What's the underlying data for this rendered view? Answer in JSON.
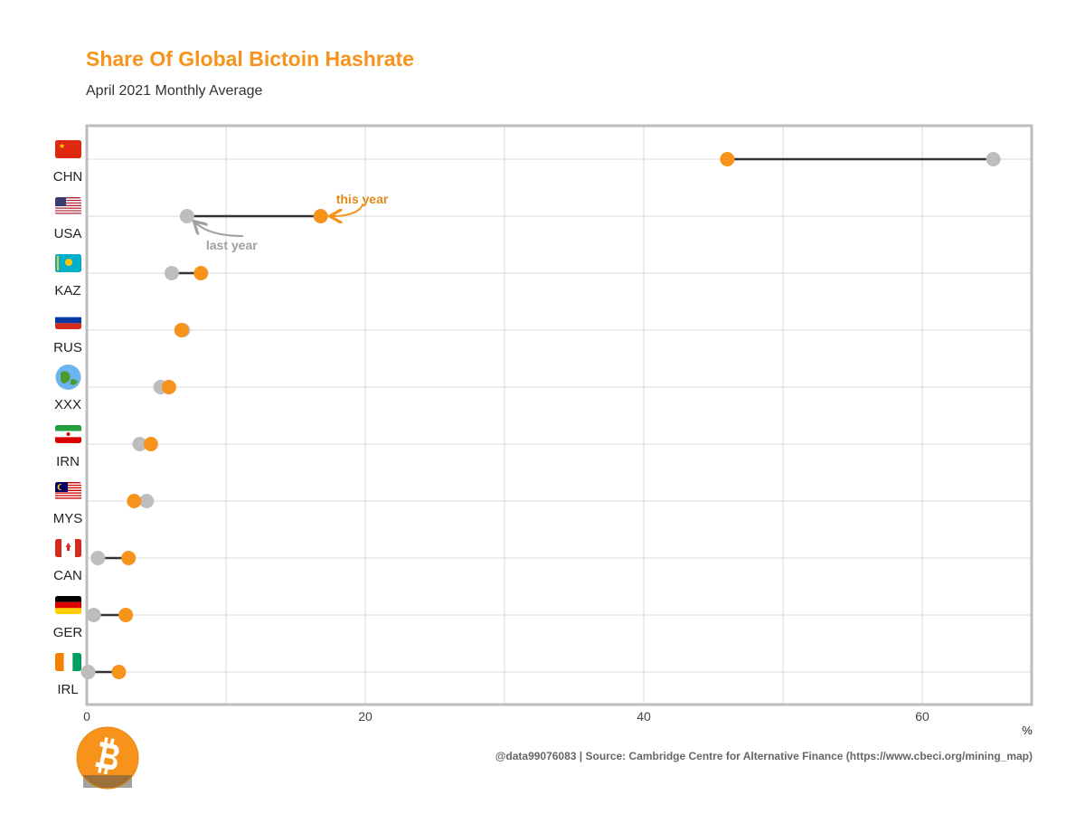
{
  "title": "Share Of Global Bictoin Hashrate",
  "subtitle": "April 2021 Monthly Average",
  "caption": "@data99076083 | Source: Cambridge Centre for Alternative Finance (https://www.cbeci.org/mining_map)",
  "colors": {
    "this_year": "#f7931a",
    "last_year": "#bdbdbd",
    "segment": "#333333",
    "grid": "#d9d9d9",
    "frame": "#bdbdbd"
  },
  "chart_data": {
    "type": "dumbbell",
    "x_unit_label": "%",
    "xlim": [
      0,
      68
    ],
    "xticks": [
      0,
      20,
      40,
      60
    ],
    "grid": true,
    "categories": [
      "CHN",
      "USA",
      "KAZ",
      "RUS",
      "XXX",
      "IRN",
      "MYS",
      "CAN",
      "GER",
      "IRL"
    ],
    "series": [
      {
        "name": "last year",
        "values": [
          65.1,
          7.2,
          6.1,
          6.9,
          5.3,
          3.8,
          4.3,
          0.8,
          0.5,
          0.1
        ]
      },
      {
        "name": "this year",
        "values": [
          46.0,
          16.8,
          8.2,
          6.8,
          5.9,
          4.6,
          3.4,
          3.0,
          2.8,
          2.3
        ]
      }
    ],
    "annotations": [
      {
        "text": "this year",
        "target": "USA",
        "series": "this year"
      },
      {
        "text": "last year",
        "target": "USA",
        "series": "last year"
      }
    ]
  }
}
